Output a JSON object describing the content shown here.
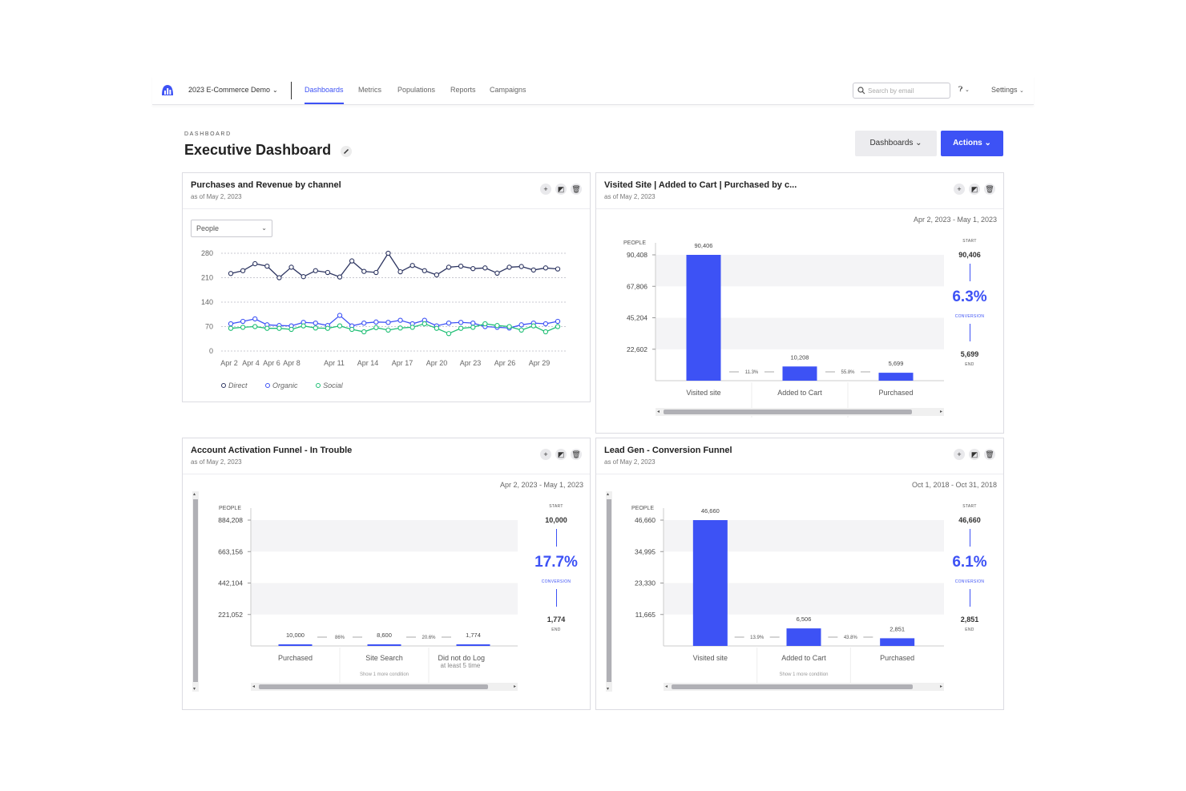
{
  "colors": {
    "accent": "#3d52f5",
    "direct": "#2d3561",
    "organic": "#3d52f5",
    "social": "#1fbf75"
  },
  "nav": {
    "org": "2023 E-Commerce Demo",
    "tabs": [
      "Dashboards",
      "Metrics",
      "Populations",
      "Reports",
      "Campaigns"
    ],
    "search_placeholder": "Search by email",
    "settings": "Settings"
  },
  "header": {
    "eyebrow": "DASHBOARD",
    "title": "Executive Dashboard",
    "dashboards_btn": "Dashboards",
    "actions_btn": "Actions"
  },
  "icons": [
    "add-icon",
    "expand-icon",
    "trash-icon",
    "edit-icon",
    "search-icon",
    "help-icon",
    "chevron-down-icon"
  ],
  "cards": {
    "c1": {
      "title": "Purchases and Revenue by channel",
      "sub": "as of May 2, 2023",
      "select": "People",
      "legend": [
        "Direct",
        "Organic",
        "Social"
      ]
    },
    "c2": {
      "title": "Visited Site | Added to Cart | Purchased by c...",
      "sub": "as of May 2, 2023",
      "range": "Apr 2, 2023 - May 1, 2023",
      "people_label": "PEOPLE",
      "start_label": "START",
      "start": "90,406",
      "pct": "6.3%",
      "conv_label": "CONVERSION",
      "end": "5,699",
      "end_label": "END",
      "yticks": [
        "90,408",
        "67,806",
        "45,204",
        "22,602"
      ],
      "steps": [
        "Visited site",
        "Added to Cart",
        "Purchased"
      ],
      "values_text": [
        "90,406",
        "10,208",
        "5,699"
      ],
      "rates": [
        "11.3%",
        "55.8%"
      ]
    },
    "c3": {
      "title": "Account Activation Funnel - In Trouble",
      "sub": "as of May 2, 2023",
      "range": "Apr 2, 2023 - May 1, 2023",
      "people_label": "PEOPLE",
      "start_label": "START",
      "start": "10,000",
      "pct": "17.7%",
      "conv_label": "CONVERSION",
      "end": "1,774",
      "end_label": "END",
      "yticks": [
        "884,208",
        "663,156",
        "442,104",
        "221,052"
      ],
      "steps": [
        "Purchased",
        "Site Search",
        "Did not do Log"
      ],
      "step3_sub": "at least 5 time",
      "values_text": [
        "10,000",
        "8,600",
        "1,774"
      ],
      "rates": [
        "86%",
        "20.6%"
      ],
      "hint": "Show 1 more condition"
    },
    "c4": {
      "title": "Lead Gen - Conversion Funnel",
      "sub": "as of May 2, 2023",
      "range": "Oct 1, 2018 - Oct 31, 2018",
      "people_label": "PEOPLE",
      "start_label": "START",
      "start": "46,660",
      "pct": "6.1%",
      "conv_label": "CONVERSION",
      "end": "2,851",
      "end_label": "END",
      "yticks": [
        "46,660",
        "34,995",
        "23,330",
        "11,665"
      ],
      "steps": [
        "Visited site",
        "Added to Cart",
        "Purchased"
      ],
      "values_text": [
        "46,660",
        "6,506",
        "2,851"
      ],
      "rates": [
        "13.9%",
        "43.8%"
      ],
      "hint": "Show 1 more condition"
    }
  },
  "chart_data": [
    {
      "type": "line",
      "x_ticks": [
        "Apr 2",
        "Apr 4",
        "Apr 6",
        "Apr 8",
        "Apr 11",
        "Apr 14",
        "Apr 17",
        "Apr 20",
        "Apr 23",
        "Apr 26",
        "Apr 29"
      ],
      "ylim": [
        0,
        280
      ],
      "yticks": [
        "280",
        "210",
        "140",
        "70",
        "0"
      ],
      "grid": true,
      "series": [
        {
          "name": "Direct",
          "values": [
            222,
            230,
            250,
            243,
            210,
            240,
            213,
            230,
            225,
            212,
            258,
            228,
            225,
            280,
            227,
            245,
            230,
            218,
            240,
            243,
            236,
            238,
            223,
            240,
            242,
            232,
            238,
            235
          ]
        },
        {
          "name": "Organic",
          "values": [
            78,
            85,
            92,
            75,
            73,
            72,
            82,
            80,
            73,
            102,
            72,
            80,
            83,
            82,
            88,
            78,
            88,
            72,
            80,
            82,
            80,
            70,
            68,
            66,
            75,
            80,
            78,
            85
          ]
        },
        {
          "name": "Social",
          "values": [
            65,
            68,
            70,
            65,
            65,
            62,
            72,
            66,
            65,
            72,
            62,
            55,
            67,
            60,
            66,
            68,
            78,
            65,
            50,
            65,
            68,
            78,
            73,
            70,
            60,
            72,
            55,
            70
          ]
        }
      ]
    },
    {
      "type": "bar",
      "categories": [
        "Visited site",
        "Added to Cart",
        "Purchased"
      ],
      "values": [
        90406,
        10208,
        5699
      ],
      "ylim": [
        0,
        90408
      ]
    },
    {
      "type": "bar",
      "categories": [
        "Purchased",
        "Site Search",
        "Did not do Log"
      ],
      "values": [
        10000,
        8600,
        1774
      ],
      "ylim": [
        0,
        884208
      ]
    },
    {
      "type": "bar",
      "categories": [
        "Visited site",
        "Added to Cart",
        "Purchased"
      ],
      "values": [
        46660,
        6506,
        2851
      ],
      "ylim": [
        0,
        46660
      ]
    }
  ]
}
